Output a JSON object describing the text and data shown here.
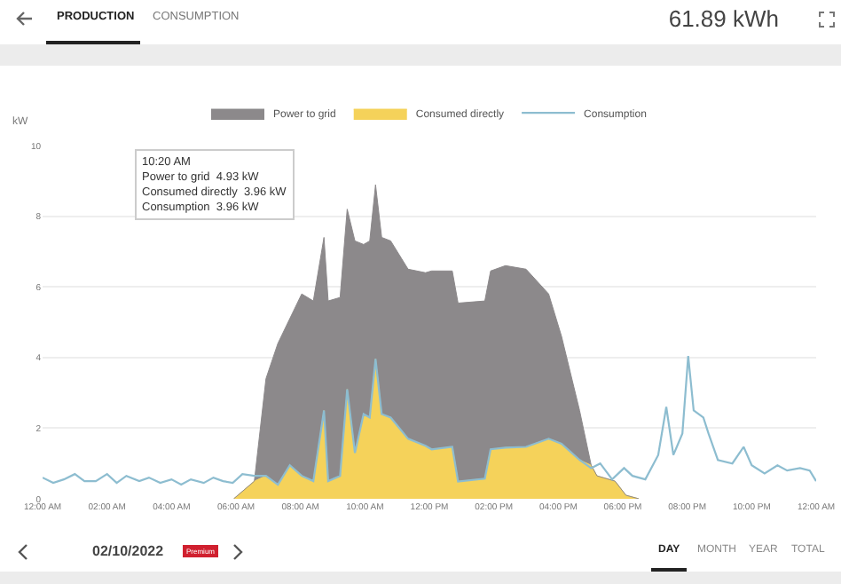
{
  "chart_data": {
    "type": "area",
    "stacked": true,
    "ylabel": "kW",
    "x": [
      5.93,
      6.57,
      6.93,
      7.3,
      7.67,
      8.04,
      8.4,
      8.73,
      8.86,
      9.23,
      9.45,
      9.69,
      9.96,
      10.15,
      10.33,
      10.52,
      10.8,
      11.34,
      11.88,
      12.07,
      12.71,
      12.89,
      13.72,
      13.9,
      14.36,
      15.0,
      15.7,
      16.1,
      16.66,
      17.02,
      17.2,
      17.76,
      18.1,
      18.5
    ],
    "series": [
      {
        "name": "Consumed directly",
        "color": "#f5d25a",
        "values": [
          0,
          0.5,
          0.65,
          0.4,
          0.95,
          0.65,
          0.5,
          2.5,
          0.5,
          0.65,
          3.1,
          1.3,
          2.4,
          2.3,
          3.96,
          2.4,
          2.3,
          1.7,
          1.5,
          1.4,
          1.47,
          0.49,
          0.57,
          1.4,
          1.45,
          1.47,
          1.7,
          1.56,
          1.1,
          0.95,
          0.65,
          0.5,
          0.1,
          0
        ]
      },
      {
        "name": "Power to grid",
        "color": "#8c898b",
        "values": [
          0,
          0,
          2.75,
          4.0,
          4.15,
          5.15,
          5.1,
          4.9,
          5.1,
          5.05,
          5.1,
          6.0,
          4.8,
          5.0,
          4.93,
          5.0,
          5.0,
          4.8,
          4.9,
          5.05,
          4.98,
          5.05,
          5.03,
          5.05,
          5.15,
          5.03,
          4.1,
          3.04,
          1.4,
          0,
          0,
          0,
          0,
          0
        ]
      },
      {
        "name": "Consumption",
        "type": "line",
        "color": "#8dbdd0",
        "x": [
          0,
          0.33,
          0.66,
          1.0,
          1.3,
          1.65,
          2.0,
          2.3,
          2.6,
          3.0,
          3.3,
          3.65,
          4.0,
          4.3,
          4.6,
          5.0,
          5.3,
          5.6,
          5.9,
          6.2,
          6.57,
          6.93,
          7.3,
          7.67,
          8.04,
          8.4,
          8.73,
          8.86,
          9.23,
          9.45,
          9.69,
          9.96,
          10.15,
          10.33,
          10.52,
          10.8,
          11.34,
          11.88,
          12.07,
          12.71,
          12.89,
          13.72,
          13.9,
          14.36,
          15.0,
          15.7,
          16.1,
          16.66,
          17.02,
          17.3,
          17.67,
          18.04,
          18.3,
          18.7,
          19.1,
          19.35,
          19.57,
          19.85,
          20.03,
          20.2,
          20.5,
          20.66,
          20.95,
          21.4,
          21.75,
          22.0,
          22.4,
          22.8,
          23.1,
          23.5,
          23.8,
          24
        ],
        "values": [
          0.6,
          0.45,
          0.55,
          0.7,
          0.5,
          0.5,
          0.7,
          0.45,
          0.65,
          0.5,
          0.6,
          0.45,
          0.55,
          0.4,
          0.55,
          0.45,
          0.6,
          0.5,
          0.45,
          0.7,
          0.65,
          0.65,
          0.4,
          0.95,
          0.65,
          0.5,
          2.5,
          0.5,
          0.65,
          3.1,
          1.3,
          2.4,
          2.3,
          3.96,
          2.4,
          2.3,
          1.7,
          1.5,
          1.4,
          1.47,
          0.49,
          0.57,
          1.4,
          1.45,
          1.47,
          1.7,
          1.56,
          1.1,
          0.87,
          1.0,
          0.55,
          0.87,
          0.65,
          0.55,
          1.24,
          2.6,
          1.24,
          1.85,
          4.04,
          2.5,
          2.3,
          1.85,
          1.1,
          1.0,
          1.47,
          0.95,
          0.72,
          0.95,
          0.8,
          0.87,
          0.8,
          0.5
        ]
      }
    ],
    "xlim": [
      0,
      24
    ],
    "xticks": [
      {
        "value": 0,
        "label": "12:00 AM"
      },
      {
        "value": 2,
        "label": "02:00 AM"
      },
      {
        "value": 4,
        "label": "04:00 AM"
      },
      {
        "value": 6,
        "label": "06:00 AM"
      },
      {
        "value": 8,
        "label": "08:00 AM"
      },
      {
        "value": 10,
        "label": "10:00 AM"
      },
      {
        "value": 12,
        "label": "12:00 PM"
      },
      {
        "value": 14,
        "label": "02:00 PM"
      },
      {
        "value": 16,
        "label": "04:00 PM"
      },
      {
        "value": 18,
        "label": "06:00 PM"
      },
      {
        "value": 20,
        "label": "08:00 PM"
      },
      {
        "value": 22,
        "label": "10:00 PM"
      },
      {
        "value": 24,
        "label": "12:00 AM"
      }
    ],
    "ylim": [
      0,
      10
    ],
    "yticks": [
      0,
      2,
      4,
      6,
      8,
      10
    ],
    "grid": "y",
    "legend": "top",
    "annotations": [
      "PRODUCTION",
      "CONSUMPTION",
      "61.89 kWh",
      "02/10/2022",
      "Premium",
      "DAY",
      "MONTH",
      "YEAR",
      "TOTAL",
      "10:20 AM\nPower to grid  4.93 kW\nConsumed directly  3.96 kW\nConsumption  3.96 kW"
    ]
  }
}
